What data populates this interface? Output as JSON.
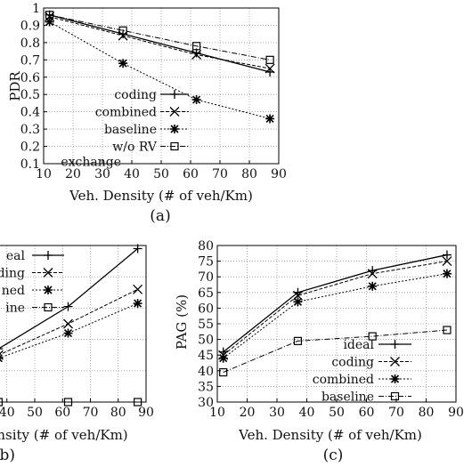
{
  "chart_data": [
    {
      "id": "a",
      "type": "line",
      "caption": "(a)",
      "xlabel": "Veh. Density (# of veh/Km)",
      "ylabel": "PDR",
      "xlim": [
        10,
        90
      ],
      "ylim": [
        0.1,
        1
      ],
      "xticks": [
        10,
        20,
        30,
        40,
        50,
        60,
        70,
        80,
        90
      ],
      "yticks": [
        0.1,
        0.2,
        0.3,
        0.4,
        0.5,
        0.6,
        0.7,
        0.8,
        0.9,
        1
      ],
      "ytick_labels": [
        "0.1",
        "0.2",
        "0.3",
        "0.4",
        "0.5",
        "0.6",
        "0.7",
        "0.8",
        "0.9",
        "1"
      ],
      "grid": true,
      "legend_position": "bottom-left",
      "x": [
        12,
        37,
        62,
        87
      ],
      "series": [
        {
          "name": "coding",
          "marker": "plus",
          "dash": "solid",
          "values": [
            0.96,
            0.85,
            0.74,
            0.63
          ]
        },
        {
          "name": "combined",
          "marker": "x",
          "dash": "4,2",
          "values": [
            0.95,
            0.84,
            0.73,
            0.65
          ]
        },
        {
          "name": "baseline",
          "marker": "star",
          "dash": "2,2",
          "values": [
            0.92,
            0.68,
            0.47,
            0.36
          ]
        },
        {
          "name": "w/o RV exchange",
          "marker": "square",
          "dash": "6,2,1,2",
          "values": [
            0.96,
            0.87,
            0.78,
            0.7
          ]
        }
      ]
    },
    {
      "id": "b",
      "type": "line",
      "caption": "(b)",
      "xlabel": "nsity (# of veh/Km)",
      "ylabel": "",
      "xlim": [
        10,
        90
      ],
      "ylim": [
        0,
        10
      ],
      "xticks": [
        40,
        50,
        60,
        70,
        80,
        90
      ],
      "yticks": [],
      "grid": true,
      "legend_position": "top-left",
      "x": [
        12,
        37,
        62,
        87
      ],
      "series": [
        {
          "name": "ideal",
          "marker": "plus",
          "dash": "solid",
          "legend_text": "eal",
          "values": [
            1.2,
            3.4,
            6.1,
            9.8
          ]
        },
        {
          "name": "coding",
          "marker": "x",
          "dash": "4,2",
          "legend_text": "ding",
          "values": [
            1.1,
            3.0,
            5.0,
            7.2
          ]
        },
        {
          "name": "combined",
          "marker": "star",
          "dash": "2,2",
          "legend_text": "ned",
          "values": [
            1.0,
            2.8,
            4.4,
            6.3
          ]
        },
        {
          "name": "baseline",
          "marker": "square",
          "dash": "6,2,1,2",
          "legend_text": "ine",
          "values": [
            0,
            0,
            0,
            0
          ]
        }
      ]
    },
    {
      "id": "c",
      "type": "line",
      "caption": "(c)",
      "xlabel": "Veh. Density (# of veh/Km)",
      "ylabel": "PAG (%)",
      "xlim": [
        10,
        90
      ],
      "ylim": [
        30,
        80
      ],
      "xticks": [
        10,
        20,
        30,
        40,
        50,
        60,
        70,
        80,
        90
      ],
      "yticks": [
        30,
        35,
        40,
        45,
        50,
        55,
        60,
        65,
        70,
        75,
        80
      ],
      "grid": true,
      "legend_position": "bottom-right",
      "x": [
        12,
        37,
        62,
        87
      ],
      "series": [
        {
          "name": "ideal",
          "marker": "plus",
          "dash": "solid",
          "values": [
            46,
            65,
            72,
            77
          ]
        },
        {
          "name": "coding",
          "marker": "x",
          "dash": "4,2",
          "values": [
            45,
            64,
            71,
            75
          ]
        },
        {
          "name": "combined",
          "marker": "star",
          "dash": "2,2",
          "values": [
            44,
            62,
            67,
            71
          ]
        },
        {
          "name": "baseline",
          "marker": "square",
          "dash": "6,2,1,2",
          "values": [
            39.5,
            49.5,
            51,
            53
          ]
        }
      ]
    }
  ]
}
